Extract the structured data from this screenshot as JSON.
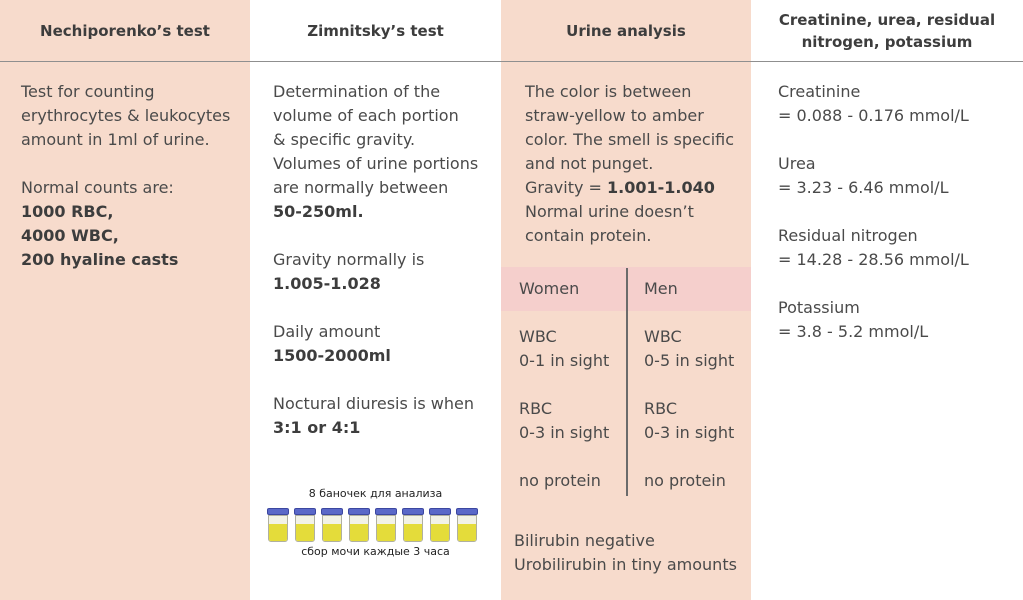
{
  "columns": {
    "nechiporenko": {
      "title": "Nechiporenko’s test",
      "desc_lines": [
        "Test for counting",
        "erythrocytes & leukocytes",
        "amount in 1ml of urine."
      ],
      "normal_label": "Normal counts are:",
      "counts": [
        "1000 RBC,",
        "4000 WBC,",
        "200 hyaline casts"
      ]
    },
    "zimnitsky": {
      "title": "Zimnitsky’s test",
      "desc_lines": [
        "Determination of the",
        "volume of each portion",
        "& specific gravity.",
        "Volumes of urine portions",
        "are normally between"
      ],
      "volume_range": "50-250ml.",
      "gravity_label": "Gravity normally is",
      "gravity_value": "1.005-1.028",
      "daily_label": "Daily amount",
      "daily_value": "1500-2000ml",
      "nocturnal_label": "Noctural diuresis is when",
      "nocturnal_value": "3:1 or 4:1",
      "jars_caption_top": "8 баночек для анализа",
      "jars_caption_bottom": "сбор мочи каждые 3 часа",
      "jar_count": 8
    },
    "urine": {
      "title": "Urine analysis",
      "color_lines": [
        "The color is between",
        "straw-yellow to amber",
        "color. The smell is specific",
        "and not punget."
      ],
      "gravity_label": "Gravity = ",
      "gravity_value": "1.001-1.040",
      "protein_lines": [
        "Normal urine doesn’t",
        "contain protein."
      ],
      "women": {
        "header": "Women",
        "wbc_label": "WBC",
        "wbc_value": "0-1 in sight",
        "rbc_label": "RBC",
        "rbc_value": "0-3 in sight",
        "protein": "no protein"
      },
      "men": {
        "header": "Men",
        "wbc_label": "WBC",
        "wbc_value": "0-5 in sight",
        "rbc_label": "RBC",
        "rbc_value": "0-3 in sight",
        "protein": "no protein"
      },
      "bilirubin": "Bilirubin negative",
      "urobilirubin": "Urobilirubin in tiny amounts"
    },
    "creatinine": {
      "title_line1": "Creatinine, urea, residual",
      "title_line2": "nitrogen, potassium",
      "items": [
        {
          "name": "Creatinine",
          "value": "= 0.088 - 0.176 mmol/L"
        },
        {
          "name": "Urea",
          "value": "= 3.23 - 6.46 mmol/L"
        },
        {
          "name": "Residual nitrogen",
          "value": "= 14.28 - 28.56 mmol/L"
        },
        {
          "name": "Potassium",
          "value": "= 3.8 - 5.2 mmol/L"
        }
      ]
    }
  },
  "colors": {
    "peach": "#f7dbcc",
    "pink_band": "#f5cfcc",
    "urine_yellow": "#e4dc3a",
    "lid_blue": "#5a68c8"
  }
}
